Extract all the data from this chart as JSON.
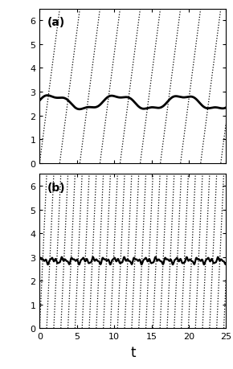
{
  "xlim": [
    0,
    25
  ],
  "ylim_a": [
    0,
    6.5
  ],
  "ylim_b": [
    0,
    6.5
  ],
  "yticks": [
    0,
    1,
    2,
    3,
    4,
    5,
    6
  ],
  "xticks": [
    0,
    5,
    10,
    15,
    20,
    25
  ],
  "xlabel": "t",
  "label_a": "(a)",
  "label_b": "(b)",
  "background": "white",
  "figsize": [
    2.9,
    4.6
  ],
  "dpi": 100,
  "panel_a": {
    "dot_period": 2.7,
    "dot_slope": 6.5,
    "n_extra": 3,
    "solid_mean": 2.55,
    "solid_amp1": 0.28,
    "solid_freq1": 0.72,
    "solid_phase1": 0.3,
    "solid_amp2": 0.07,
    "solid_freq2": 2.2,
    "solid_phase2": 0.0,
    "solid_lw": 2.0
  },
  "panel_b": {
    "dot_period": 0.95,
    "dot_slope": 6.5,
    "n_extra": 3,
    "solid_mean": 2.85,
    "solid_amp1": 0.08,
    "solid_freq1": 4.5,
    "solid_phase1": 0.0,
    "solid_amp2": 0.06,
    "solid_freq2": 9.0,
    "solid_phase2": 0.5,
    "solid_amp3": 0.04,
    "solid_freq3": 15.0,
    "solid_phase3": 1.0,
    "solid_lw": 1.6
  }
}
